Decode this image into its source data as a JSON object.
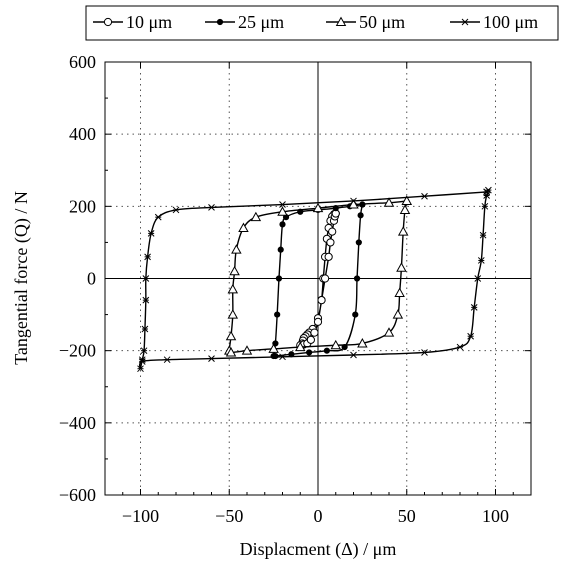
{
  "chart_data": {
    "type": "line",
    "title": "",
    "xlabel": "Displacment (Δ) / μm",
    "ylabel": "Tangential force (Q) / N",
    "xlim": [
      -120,
      120
    ],
    "ylim": [
      -600,
      600
    ],
    "x_ticks": [
      -100,
      -50,
      0,
      50,
      100
    ],
    "x_tick_labels": [
      "−100",
      "−50",
      "0",
      "50",
      "100"
    ],
    "y_ticks": [
      -600,
      -400,
      -200,
      0,
      200,
      400,
      600
    ],
    "y_tick_labels": [
      "−600",
      "−400",
      "−200",
      "0",
      "200",
      "400",
      "600"
    ],
    "grid": "dotted",
    "legend_position": "top",
    "series": [
      {
        "name": "10 μm",
        "marker": "open-circle",
        "x": [
          10,
          9,
          8,
          7,
          6,
          5,
          4,
          3,
          2,
          0,
          -3,
          -5,
          -6,
          -7,
          -8,
          -8.5,
          -9,
          -10,
          -8,
          -6,
          -4,
          -2,
          0,
          2,
          4,
          6,
          7,
          8,
          9,
          9.5,
          10
        ],
        "y": [
          180,
          178,
          172,
          160,
          140,
          110,
          60,
          0,
          -60,
          -110,
          -140,
          -150,
          -155,
          -160,
          -165,
          -172,
          -180,
          -185,
          -183,
          -180,
          -170,
          -150,
          -120,
          -60,
          0,
          60,
          100,
          130,
          160,
          172,
          180
        ]
      },
      {
        "name": "25 μm",
        "marker": "filled-dot",
        "x": [
          25,
          18,
          10,
          0,
          -10,
          -18,
          -20,
          -21,
          -22,
          -23,
          -24,
          -25,
          -24,
          -15,
          -5,
          5,
          15,
          21,
          22,
          23,
          24,
          25
        ],
        "y": [
          205,
          200,
          195,
          190,
          185,
          170,
          150,
          80,
          0,
          -100,
          -180,
          -215,
          -215,
          -210,
          -205,
          -200,
          -190,
          -100,
          0,
          100,
          175,
          205
        ]
      },
      {
        "name": "50 μm",
        "marker": "open-triangle",
        "x": [
          50,
          40,
          20,
          0,
          -20,
          -35,
          -42,
          -46,
          -47,
          -48,
          -48,
          -49,
          -50,
          -49,
          -40,
          -25,
          -10,
          10,
          25,
          40,
          45,
          46,
          47,
          48,
          49,
          50
        ],
        "y": [
          215,
          210,
          205,
          195,
          185,
          170,
          140,
          80,
          20,
          -30,
          -100,
          -160,
          -200,
          -205,
          -200,
          -195,
          -190,
          -185,
          -180,
          -150,
          -100,
          -40,
          30,
          130,
          190,
          215
        ]
      },
      {
        "name": "100 μm",
        "marker": "star",
        "x": [
          95,
          60,
          20,
          -20,
          -60,
          -80,
          -90,
          -94,
          -96,
          -97,
          -97,
          -97.5,
          -98,
          -99,
          -100,
          -99,
          -85,
          -60,
          -20,
          20,
          60,
          80,
          86,
          88,
          90,
          92,
          93,
          94,
          95,
          96,
          95
        ],
        "y": [
          240,
          228,
          215,
          205,
          197,
          190,
          170,
          125,
          60,
          0,
          -60,
          -140,
          -200,
          -225,
          -250,
          -230,
          -225,
          -222,
          -217,
          -212,
          -205,
          -190,
          -160,
          -80,
          0,
          50,
          120,
          200,
          230,
          245,
          240
        ]
      }
    ]
  }
}
